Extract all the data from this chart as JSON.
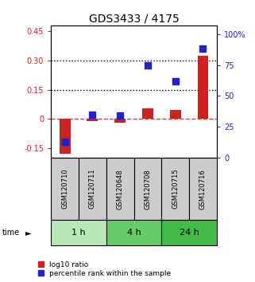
{
  "title": "GDS3433 / 4175",
  "samples": [
    "GSM120710",
    "GSM120711",
    "GSM120648",
    "GSM120708",
    "GSM120715",
    "GSM120716"
  ],
  "log10_ratio": [
    -0.18,
    -0.01,
    -0.02,
    0.055,
    0.045,
    0.325
  ],
  "percentile_rank": [
    13,
    35,
    34,
    75,
    62,
    88
  ],
  "time_groups": [
    {
      "label": "1 h",
      "samples": [
        0,
        1
      ],
      "color": "#b8e8b8"
    },
    {
      "label": "4 h",
      "samples": [
        2,
        3
      ],
      "color": "#66cc66"
    },
    {
      "label": "24 h",
      "samples": [
        4,
        5
      ],
      "color": "#44bb44"
    }
  ],
  "ylim_left": [
    -0.2,
    0.48
  ],
  "ylim_right": [
    0,
    107
  ],
  "yticks_left": [
    -0.15,
    0.0,
    0.15,
    0.3,
    0.45
  ],
  "ytick_labels_left": [
    "-0.15",
    "0",
    "0.15",
    "0.30",
    "0.45"
  ],
  "yticks_right": [
    0,
    25,
    50,
    75,
    100
  ],
  "ytick_labels_right": [
    "0",
    "25",
    "50",
    "75",
    "100%"
  ],
  "hlines": [
    0.15,
    0.3
  ],
  "bar_color_red": "#cc2222",
  "bar_color_blue": "#2222cc",
  "zero_line_color": "#cc4444",
  "sample_box_color": "#cccccc",
  "legend_red_label": "log10 ratio",
  "legend_blue_label": "percentile rank within the sample",
  "bar_width": 0.4,
  "marker_size": 6
}
